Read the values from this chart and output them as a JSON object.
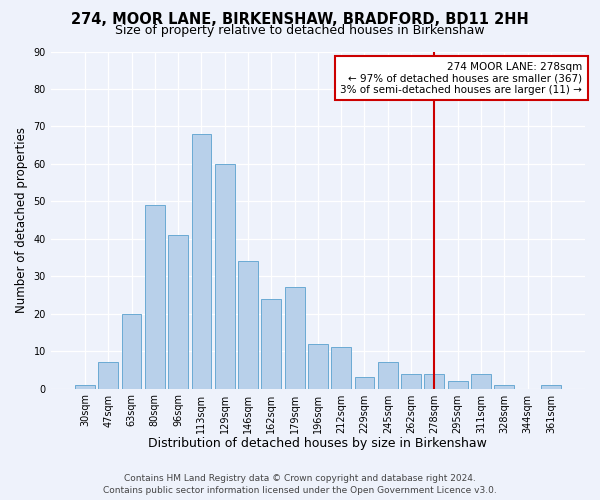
{
  "title": "274, MOOR LANE, BIRKENSHAW, BRADFORD, BD11 2HH",
  "subtitle": "Size of property relative to detached houses in Birkenshaw",
  "xlabel": "Distribution of detached houses by size in Birkenshaw",
  "ylabel": "Number of detached properties",
  "categories": [
    "30sqm",
    "47sqm",
    "63sqm",
    "80sqm",
    "96sqm",
    "113sqm",
    "129sqm",
    "146sqm",
    "162sqm",
    "179sqm",
    "196sqm",
    "212sqm",
    "229sqm",
    "245sqm",
    "262sqm",
    "278sqm",
    "295sqm",
    "311sqm",
    "328sqm",
    "344sqm",
    "361sqm"
  ],
  "values": [
    1,
    7,
    20,
    49,
    41,
    68,
    60,
    34,
    24,
    27,
    12,
    11,
    3,
    7,
    4,
    4,
    2,
    4,
    1,
    0,
    1
  ],
  "bar_color": "#b8d0ea",
  "bar_edge_color": "#6aaad4",
  "highlight_index": 15,
  "highlight_line_color": "#cc0000",
  "highlight_box_edge_color": "#cc0000",
  "annotation_line1": "274 MOOR LANE: 278sqm",
  "annotation_line2": "← 97% of detached houses are smaller (367)",
  "annotation_line3": "3% of semi-detached houses are larger (11) →",
  "ylim": [
    0,
    90
  ],
  "yticks": [
    0,
    10,
    20,
    30,
    40,
    50,
    60,
    70,
    80,
    90
  ],
  "background_color": "#eef2fb",
  "footer1": "Contains HM Land Registry data © Crown copyright and database right 2024.",
  "footer2": "Contains public sector information licensed under the Open Government Licence v3.0.",
  "title_fontsize": 10.5,
  "subtitle_fontsize": 9,
  "xlabel_fontsize": 9,
  "ylabel_fontsize": 8.5,
  "tick_fontsize": 7,
  "annot_fontsize": 7.5,
  "footer_fontsize": 6.5
}
